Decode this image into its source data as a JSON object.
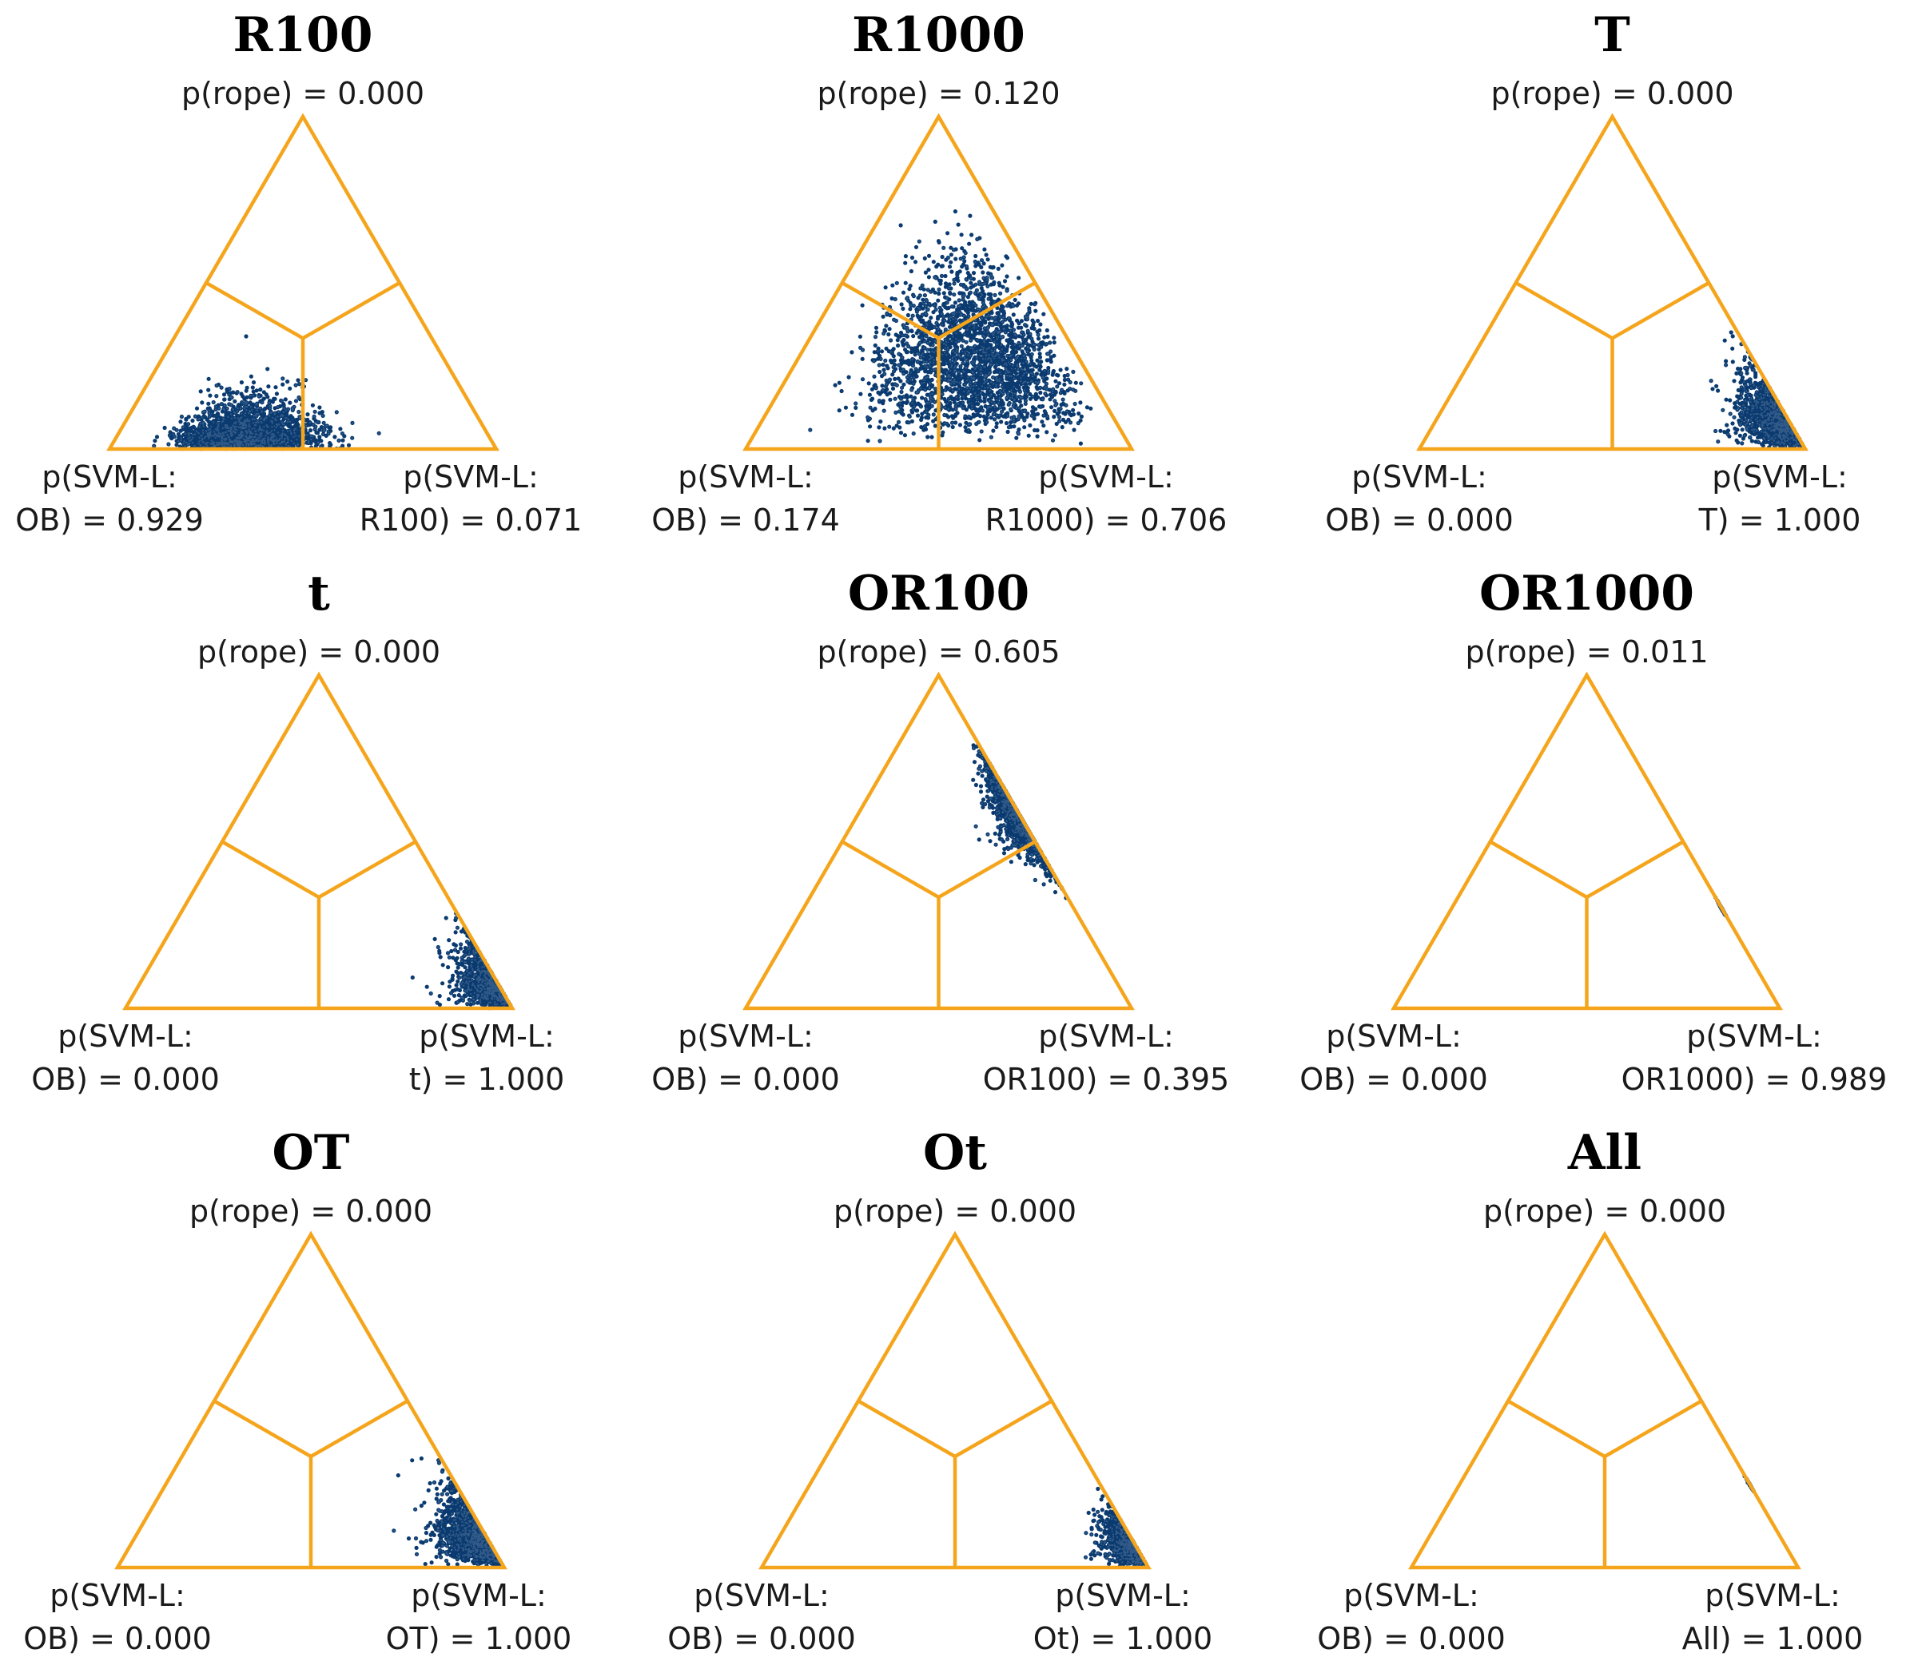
{
  "figure": {
    "colors": {
      "frame": "#F5A51C",
      "dense": "#0A3A6F",
      "core": "#E4EEF9",
      "background": "#FFFFFF"
    }
  },
  "chart_data": [
    {
      "type": "scatter",
      "title": "R100",
      "p_rope_label": "p(rope) = 0.000",
      "left_label": [
        "p(SVM-L:",
        "OB) = 0.929"
      ],
      "right_label": [
        "p(SVM-L:",
        "R100) = 0.071"
      ],
      "p_rope": 0.0,
      "p_left": 0.929,
      "p_right": 0.071
    },
    {
      "type": "scatter",
      "title": "R1000",
      "p_rope_label": "p(rope) = 0.120",
      "left_label": [
        "p(SVM-L:",
        "OB) = 0.174"
      ],
      "right_label": [
        "p(SVM-L:",
        "R1000) = 0.706"
      ],
      "p_rope": 0.12,
      "p_left": 0.174,
      "p_right": 0.706
    },
    {
      "type": "scatter",
      "title": "T",
      "p_rope_label": "p(rope) = 0.000",
      "left_label": [
        "p(SVM-L:",
        "OB) = 0.000"
      ],
      "right_label": [
        "p(SVM-L:",
        "T) = 1.000"
      ],
      "p_rope": 0.0,
      "p_left": 0.0,
      "p_right": 1.0
    },
    {
      "type": "scatter",
      "title": "t",
      "p_rope_label": "p(rope) = 0.000",
      "left_label": [
        "p(SVM-L:",
        "OB) = 0.000"
      ],
      "right_label": [
        "p(SVM-L:",
        "t) = 1.000"
      ],
      "p_rope": 0.0,
      "p_left": 0.0,
      "p_right": 1.0
    },
    {
      "type": "scatter",
      "title": "OR100",
      "p_rope_label": "p(rope) = 0.605",
      "left_label": [
        "p(SVM-L:",
        "OB) = 0.000"
      ],
      "right_label": [
        "p(SVM-L:",
        "OR100) = 0.395"
      ],
      "p_rope": 0.605,
      "p_left": 0.0,
      "p_right": 0.395
    },
    {
      "type": "scatter",
      "title": "OR1000",
      "p_rope_label": "p(rope) = 0.011",
      "left_label": [
        "p(SVM-L:",
        "OB) = 0.000"
      ],
      "right_label": [
        "p(SVM-L:",
        "OR1000) = 0.989"
      ],
      "p_rope": 0.011,
      "p_left": 0.0,
      "p_right": 0.989
    },
    {
      "type": "scatter",
      "title": "OT",
      "p_rope_label": "p(rope) = 0.000",
      "left_label": [
        "p(SVM-L:",
        "OB) = 0.000"
      ],
      "right_label": [
        "p(SVM-L:",
        "OT) = 1.000"
      ],
      "p_rope": 0.0,
      "p_left": 0.0,
      "p_right": 1.0
    },
    {
      "type": "scatter",
      "title": "Ot",
      "p_rope_label": "p(rope) = 0.000",
      "left_label": [
        "p(SVM-L:",
        "OB) = 0.000"
      ],
      "right_label": [
        "p(SVM-L:",
        "Ot) = 1.000"
      ],
      "p_rope": 0.0,
      "p_left": 0.0,
      "p_right": 1.0
    },
    {
      "type": "scatter",
      "title": "All",
      "p_rope_label": "p(rope) = 0.000",
      "left_label": [
        "p(SVM-L:",
        "OB) = 0.000"
      ],
      "right_label": [
        "p(SVM-L:",
        "All) = 1.000"
      ],
      "p_rope": 0.0,
      "p_left": 0.0,
      "p_right": 1.0
    }
  ]
}
